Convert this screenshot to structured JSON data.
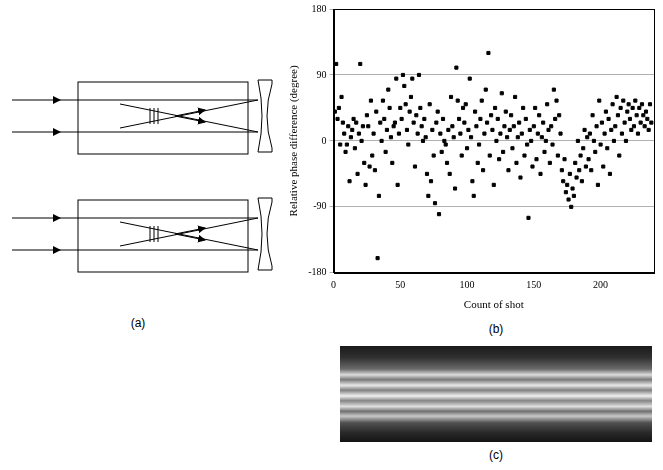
{
  "panels": {
    "a": "(a)",
    "b": "(b)",
    "c": "(c)"
  },
  "chart_data": {
    "type": "scatter",
    "x_label": "Count of shot",
    "y_label": "Relative phase difference (degree)",
    "marker": "square",
    "color": "#000000",
    "grid": "y",
    "xlim": [
      0,
      240
    ],
    "xticks": [
      0,
      50,
      100,
      150,
      200
    ],
    "ylim": [
      -180,
      180
    ],
    "yticks": [
      -180,
      -90,
      0,
      90,
      180
    ],
    "x": [
      1,
      2,
      3,
      4,
      5,
      6,
      7,
      8,
      9,
      10,
      11,
      12,
      13,
      14,
      15,
      16,
      17,
      18,
      19,
      20,
      21,
      22,
      23,
      24,
      25,
      26,
      27,
      28,
      29,
      30,
      31,
      32,
      33,
      34,
      35,
      36,
      37,
      38,
      39,
      40,
      41,
      42,
      43,
      44,
      45,
      46,
      47,
      48,
      49,
      50,
      51,
      52,
      53,
      54,
      55,
      56,
      57,
      58,
      59,
      60,
      61,
      62,
      63,
      64,
      65,
      66,
      67,
      68,
      69,
      70,
      71,
      72,
      73,
      74,
      75,
      76,
      77,
      78,
      79,
      80,
      81,
      82,
      83,
      84,
      85,
      86,
      87,
      88,
      89,
      90,
      91,
      92,
      93,
      94,
      95,
      96,
      97,
      98,
      99,
      100,
      101,
      102,
      103,
      104,
      105,
      106,
      107,
      108,
      109,
      110,
      111,
      112,
      113,
      114,
      115,
      116,
      117,
      118,
      119,
      120,
      121,
      122,
      123,
      124,
      125,
      126,
      127,
      128,
      129,
      130,
      131,
      132,
      133,
      134,
      135,
      136,
      137,
      138,
      139,
      140,
      141,
      142,
      143,
      144,
      145,
      146,
      147,
      148,
      149,
      150,
      151,
      152,
      153,
      154,
      155,
      156,
      157,
      158,
      159,
      160,
      161,
      162,
      163,
      164,
      165,
      166,
      167,
      168,
      169,
      170,
      171,
      172,
      173,
      174,
      175,
      176,
      177,
      178,
      179,
      180,
      181,
      182,
      183,
      184,
      185,
      186,
      187,
      188,
      189,
      190,
      191,
      192,
      193,
      194,
      195,
      196,
      197,
      198,
      199,
      200,
      201,
      202,
      203,
      204,
      205,
      206,
      207,
      208,
      209,
      210,
      211,
      212,
      213,
      214,
      215,
      216,
      217,
      218,
      219,
      220,
      221,
      222,
      223,
      224,
      225,
      226,
      227,
      228,
      229,
      230,
      231,
      232,
      233,
      234,
      235,
      236,
      237,
      238
    ],
    "values": [
      40,
      105,
      30,
      45,
      -5,
      60,
      25,
      10,
      -15,
      -5,
      20,
      -55,
      5,
      15,
      30,
      -10,
      25,
      -45,
      10,
      105,
      0,
      20,
      -30,
      -60,
      35,
      20,
      -35,
      55,
      -20,
      10,
      -40,
      40,
      -160,
      -75,
      25,
      0,
      55,
      30,
      -15,
      15,
      70,
      45,
      5,
      -30,
      20,
      25,
      85,
      -60,
      10,
      45,
      30,
      90,
      75,
      50,
      15,
      -5,
      40,
      60,
      85,
      25,
      -35,
      35,
      10,
      90,
      45,
      20,
      0,
      30,
      5,
      -45,
      -75,
      50,
      -55,
      15,
      -20,
      -85,
      25,
      40,
      -100,
      10,
      -15,
      30,
      0,
      -5,
      -30,
      15,
      -45,
      60,
      20,
      5,
      -65,
      100,
      55,
      30,
      10,
      -20,
      45,
      25,
      50,
      -10,
      15,
      85,
      5,
      -55,
      -75,
      40,
      20,
      -30,
      -5,
      30,
      55,
      -40,
      10,
      70,
      25,
      120,
      -20,
      35,
      15,
      -60,
      45,
      0,
      30,
      -25,
      10,
      65,
      -15,
      20,
      40,
      5,
      -40,
      15,
      35,
      -10,
      20,
      60,
      -30,
      5,
      25,
      -50,
      10,
      45,
      -20,
      30,
      -5,
      -105,
      15,
      0,
      -35,
      20,
      45,
      -25,
      10,
      35,
      -45,
      5,
      25,
      -15,
      0,
      50,
      15,
      -30,
      20,
      -5,
      70,
      30,
      55,
      -20,
      35,
      10,
      -40,
      -55,
      -25,
      -70,
      -60,
      -80,
      -45,
      -90,
      -65,
      -75,
      -30,
      -50,
      0,
      -40,
      -20,
      -55,
      -10,
      15,
      -35,
      5,
      -25,
      10,
      -40,
      35,
      0,
      -15,
      20,
      -60,
      55,
      -5,
      25,
      -35,
      10,
      40,
      -10,
      30,
      -45,
      15,
      50,
      0,
      20,
      60,
      35,
      -20,
      45,
      10,
      55,
      25,
      0,
      40,
      50,
      30,
      15,
      45,
      20,
      55,
      35,
      10,
      45,
      25,
      50,
      35,
      20,
      40,
      30,
      15,
      50,
      25
    ]
  }
}
